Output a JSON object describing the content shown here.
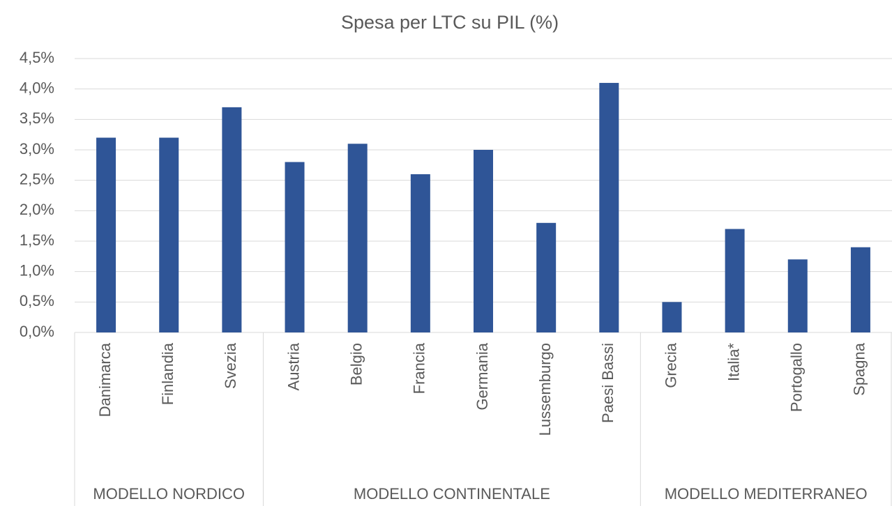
{
  "chart_data": {
    "type": "bar",
    "title": "Spesa per LTC su PIL (%)",
    "categories": [
      "Danimarca",
      "Finlandia",
      "Svezia",
      "Austria",
      "Belgio",
      "Francia",
      "Germania",
      "Lussemburgo",
      "Paesi Bassi",
      "Grecia",
      "Italia*",
      "Portogallo",
      "Spagna"
    ],
    "category_groups": [
      "MODELLO NORDICO",
      "MODELLO NORDICO",
      "MODELLO NORDICO",
      "MODELLO CONTINENTALE",
      "MODELLO CONTINENTALE",
      "MODELLO CONTINENTALE",
      "MODELLO CONTINENTALE",
      "MODELLO CONTINENTALE",
      "MODELLO CONTINENTALE",
      "MODELLO MEDITERRANEO",
      "MODELLO MEDITERRANEO",
      "MODELLO MEDITERRANEO",
      "MODELLO MEDITERRANEO"
    ],
    "values": [
      3.2,
      3.2,
      3.7,
      2.8,
      3.1,
      2.6,
      3.0,
      1.8,
      4.1,
      0.5,
      1.7,
      1.2,
      1.4
    ],
    "color": "#2f5597",
    "ylim": [
      0,
      4.5
    ],
    "yticks": [
      {
        "value": 0,
        "label": "0,0%"
      },
      {
        "value": 0.5,
        "label": "0,5%"
      },
      {
        "value": 1,
        "label": "1,0%"
      },
      {
        "value": 1.5,
        "label": "1,5%"
      },
      {
        "value": 2,
        "label": "2,0%"
      },
      {
        "value": 2.5,
        "label": "2,5%"
      },
      {
        "value": 3,
        "label": "3,0%"
      },
      {
        "value": 3.5,
        "label": "3,5%"
      },
      {
        "value": 4,
        "label": "4,0%"
      },
      {
        "value": 4.5,
        "label": "4,5%"
      }
    ],
    "grid": true
  }
}
